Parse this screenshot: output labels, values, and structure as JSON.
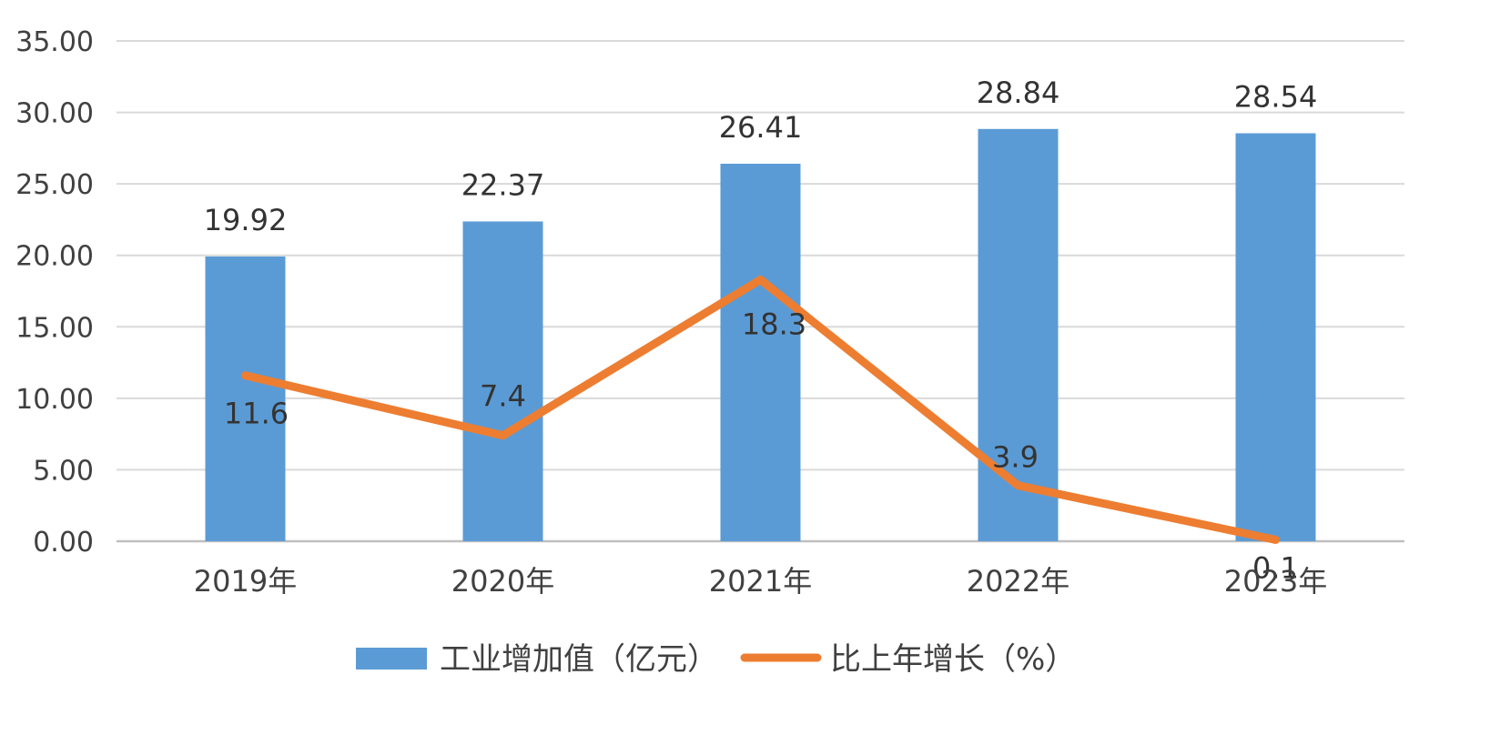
{
  "chart_data": {
    "type": "bar",
    "categories": [
      "2019年",
      "2020年",
      "2021年",
      "2022年",
      "2023年"
    ],
    "series": [
      {
        "name": "工业增加值（亿元）",
        "type": "bar",
        "values": [
          19.92,
          22.37,
          26.41,
          28.84,
          28.54
        ],
        "labels": [
          "19.92",
          "22.37",
          "26.41",
          "28.84",
          "28.54"
        ],
        "color": "#5B9BD5"
      },
      {
        "name": "比上年增长（%）",
        "type": "line",
        "values": [
          11.6,
          7.4,
          18.3,
          3.9,
          0.1
        ],
        "labels": [
          "11.6",
          "7.4",
          "18.3",
          "3.9",
          "0.1"
        ],
        "color": "#ED7D31"
      }
    ],
    "yticks": [
      "0.00",
      "5.00",
      "10.00",
      "15.00",
      "20.00",
      "25.00",
      "30.00",
      "35.00"
    ],
    "ylim": [
      0,
      35
    ],
    "grid": true,
    "legend": "bottom-center",
    "title": "",
    "xlabel": "",
    "ylabel": ""
  }
}
